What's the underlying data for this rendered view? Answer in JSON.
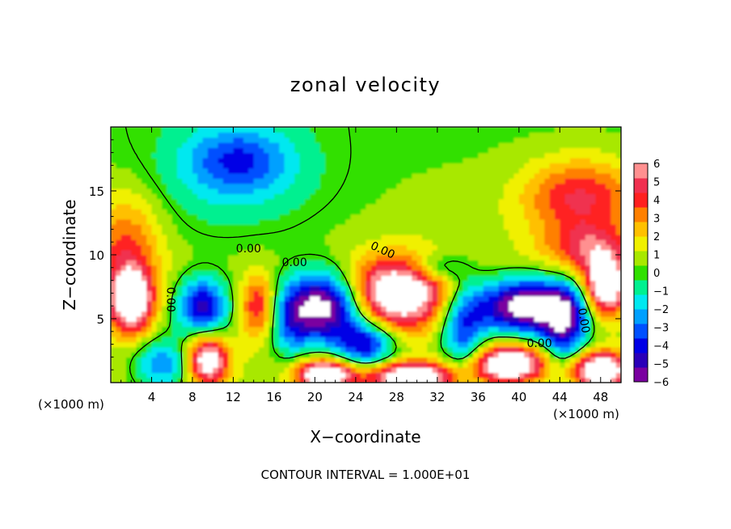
{
  "chart_data": {
    "type": "heatmap",
    "title": "zonal velocity",
    "xlabel": "X−coordinate",
    "ylabel": "Z−coordinate",
    "x_unit_left": "(×1000 m)",
    "x_unit_right": "(×1000 m)",
    "footer": "CONTOUR INTERVAL = 1.000E+01",
    "xlim": [
      0,
      50
    ],
    "ylim": [
      0,
      20
    ],
    "xticks": [
      4,
      8,
      12,
      16,
      20,
      24,
      28,
      32,
      36,
      40,
      44,
      48
    ],
    "xtick_labels": [
      "4",
      "8",
      "12",
      "16",
      "20",
      "24",
      "28",
      "32",
      "36",
      "40",
      "44",
      "48"
    ],
    "yticks": [
      5,
      10,
      15
    ],
    "ytick_labels": [
      "5",
      "10",
      "15"
    ],
    "colorbar": {
      "min": -6,
      "max": 6,
      "tick_labels": [
        "6",
        "5",
        "4",
        "3",
        "2",
        "1",
        "0",
        "−1",
        "−2",
        "−3",
        "−4",
        "−5",
        "−6"
      ],
      "colors": [
        "#7a00a0",
        "#2a00b8",
        "#0000e6",
        "#0050ff",
        "#00a0ff",
        "#00e8f0",
        "#00f090",
        "#30e000",
        "#a8e800",
        "#f0f000",
        "#ffc000",
        "#ff8000",
        "#ff2020",
        "#f03050",
        "#ff9090"
      ]
    },
    "contour_labels": [
      "0.00",
      "0.00",
      "0.00",
      "0.00",
      "0.00",
      "0.00"
    ],
    "features": [
      {
        "x": 12.5,
        "z": 17.5,
        "value": -3.0,
        "sx": 3.5,
        "sz": 1.8
      },
      {
        "x": 12.0,
        "z": 15.5,
        "value": -1.6,
        "sx": 7.0,
        "sz": 3.5
      },
      {
        "x": 46.0,
        "z": 14.5,
        "value": 4.0,
        "sx": 4.0,
        "sz": 2.2
      },
      {
        "x": 1.5,
        "z": 11.0,
        "value": 3.0,
        "sx": 2.5,
        "sz": 3.0
      },
      {
        "x": 47.0,
        "z": 10.5,
        "value": 3.5,
        "sx": 3.0,
        "sz": 1.3
      },
      {
        "x": 28.0,
        "z": 7.0,
        "value": 8.0,
        "sx": 3.5,
        "sz": 1.9
      },
      {
        "x": 21.0,
        "z": 6.0,
        "value": -8.0,
        "sx": 2.8,
        "sz": 1.9
      },
      {
        "x": 41.0,
        "z": 6.0,
        "value": -8.0,
        "sx": 3.8,
        "sz": 1.5
      },
      {
        "x": 9.0,
        "z": 6.0,
        "value": -5.5,
        "sx": 1.8,
        "sz": 1.6
      },
      {
        "x": 2.0,
        "z": 6.5,
        "value": 7.5,
        "sx": 1.5,
        "sz": 1.8
      },
      {
        "x": 48.5,
        "z": 7.5,
        "value": 8.0,
        "sx": 1.5,
        "sz": 1.6
      },
      {
        "x": 9.5,
        "z": 1.8,
        "value": 7.0,
        "sx": 1.4,
        "sz": 1.3
      },
      {
        "x": 25.0,
        "z": 3.0,
        "value": -5.0,
        "sx": 2.0,
        "sz": 1.3
      },
      {
        "x": 39.0,
        "z": 1.5,
        "value": 8.0,
        "sx": 2.5,
        "sz": 1.0
      },
      {
        "x": 21.0,
        "z": 0.7,
        "value": 8.0,
        "sx": 2.0,
        "sz": 0.8
      },
      {
        "x": 29.5,
        "z": 0.5,
        "value": 8.0,
        "sx": 3.0,
        "sz": 0.8
      },
      {
        "x": 48.0,
        "z": 1.0,
        "value": 8.0,
        "sx": 2.0,
        "sz": 1.0
      },
      {
        "x": 5.0,
        "z": 1.5,
        "value": -3.5,
        "sx": 2.0,
        "sz": 1.5
      },
      {
        "x": 34.5,
        "z": 4.0,
        "value": -4.0,
        "sx": 1.5,
        "sz": 2.5
      },
      {
        "x": 14.5,
        "z": 6.0,
        "value": 4.0,
        "sx": 1.3,
        "sz": 1.8
      },
      {
        "x": 17.5,
        "z": 4.5,
        "value": -2.5,
        "sx": 1.5,
        "sz": 2.0
      },
      {
        "x": 44.5,
        "z": 4.0,
        "value": -4.5,
        "sx": 1.5,
        "sz": 2.0
      },
      {
        "x": 32.0,
        "z": 9.0,
        "value": -2.5,
        "sx": 2.0,
        "sz": 0.8
      }
    ]
  }
}
